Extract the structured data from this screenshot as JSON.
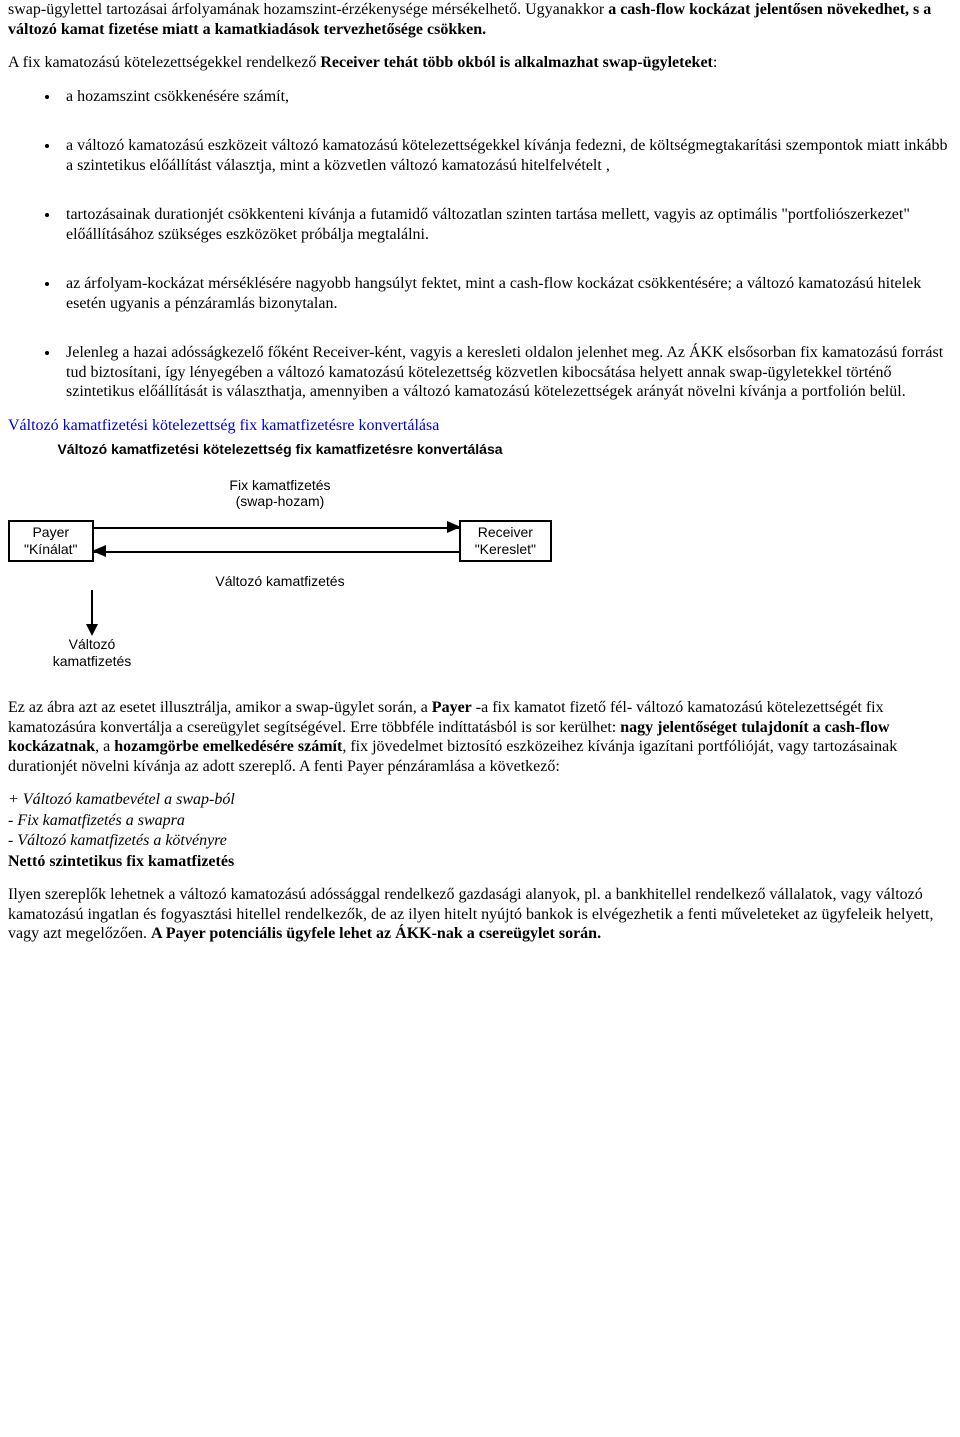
{
  "para1_html": "swap-ügylettel tartozásai árfolyamának hozamszint-érzékenysége mérsékelhető. Ugyanakkor <b>a cash-flow kockázat jelentősen növekedhet, s a változó kamat fizetése miatt a kamatkiadások tervezhetősége csökken.</b>",
  "para2_html": "A fix kamatozású kötelezettségekkel rendelkező <b>Receiver tehát több okból is alkalmazhat swap-ügyleteket</b>:",
  "bullets": [
    "a hozamszint csökkenésére számít,",
    "a változó kamatozású eszközeit változó kamatozású kötelezettségekkel kívánja fedezni, de költségmegtakarítási szempontok miatt inkább a szintetikus előállítást választja, mint a közvetlen változó kamatozású hitelfelvételt ,",
    "tartozásainak durationjét csökkenteni kívánja a futamidő változatlan szinten tartása mellett, vagyis az optimális \"portfoliószerkezet\" előállításához szükséges eszközöket próbálja megtalálni.",
    "az árfolyam-kockázat mérséklésére nagyobb hangsúlyt fektet, mint a cash-flow kockázat csökkentésére; a változó kamatozású hitelek esetén ugyanis a pénzáramlás bizonytalan.",
    "Jelenleg a hazai adósságkezelő főként Receiver-ként, vagyis a keresleti oldalon jelenhet meg. Az ÁKK elsősorban fix kamatozású forrást tud biztosítani, így lényegében a változó kamatozású kötelezettség közvetlen kibocsátása helyett annak swap-ügyletekkel történő szintetikus előállítását is választhatja, amennyiben a változó kamatozású kötelezettségek arányát növelni kívánja a portfolión belül."
  ],
  "section_link": "Változó kamatfizetési kötelezettség fix kamatfizetésre konvertálása",
  "diagram": {
    "title": "Változó kamatfizetési kötelezettség fix kamatfizetésre\nkonvertálása",
    "fix_label_line1": "Fix kamatfizetés",
    "fix_label_line2": "(swap-hozam)",
    "payer_box": "Payer\n\"Kínálat\"",
    "receiver_box": "Receiver\n\"Kereslet\"",
    "var_label": "Változó kamatfizetés",
    "payer_down_line1": "Változó",
    "payer_down_line2": "kamatfizetés"
  },
  "para3_html": "Ez az ábra azt az esetet illusztrálja, amikor a swap-ügylet során, a <b>Payer</b> -a fix kamatot fizető fél- változó kamatozású kötelezettségét fix kamatozásúra konvertálja a csereügylet segítségével. Erre többféle indíttatásból is sor kerülhet: <b>nagy jelentőséget tulajdonít a cash-flow kockázatnak</b>, a <b>hozamgörbe emelkedésére számít</b>, fix jövedelmet biztosító eszközeihez kívánja igazítani portfólióját, vagy tartozásainak durationjét növelni kívánja az adott szereplő. A fenti Payer pénzáramlása a következő:",
  "cashflow": {
    "l1": "+ Változó kamatbevétel a swap-ból",
    "l2": "- Fix kamatfizetés a swapra",
    "l3": "- Változó kamatfizetés a kötvényre",
    "net": "Nettó szintetikus fix kamatfizetés"
  },
  "para4_html": "Ilyen szereplők lehetnek a változó kamatozású adóssággal rendelkező gazdasági alanyok, pl. a bankhitellel rendelkező vállalatok, vagy változó kamatozású ingatlan és fogyasztási hitellel rendelkezők, de az ilyen hitelt nyújtó bankok is elvégezhetik a fenti műveleteket az ügyfeleik helyett, vagy azt megelőzően. <b>A Payer potenciális ügyfele lehet az ÁKK-nak a csereügylet során.</b>"
}
